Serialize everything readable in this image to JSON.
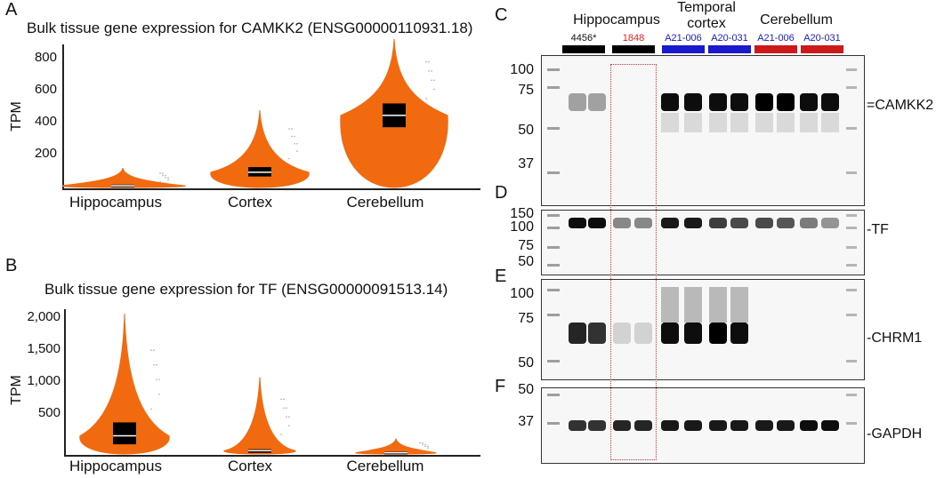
{
  "panels": {
    "A": {
      "letter": "A",
      "title": "Bulk tissue gene expression for CAMKK2 (ENSG00000110931.18)",
      "ylabel": "TPM",
      "yticks": [
        "800",
        "600",
        "400",
        "200"
      ],
      "categories": [
        "Hippocampus",
        "Cortex",
        "Cerebellum"
      ]
    },
    "B": {
      "letter": "B",
      "title": "Bulk tissue gene expression for TF (ENSG00000091513.14)",
      "ylabel": "TPM",
      "yticks": [
        "2,000",
        "1,500",
        "1,000",
        "500"
      ],
      "categories": [
        "Hippocampus",
        "Cortex",
        "Cerebellum"
      ]
    },
    "C": {
      "letter": "C",
      "markers": [
        "100",
        "75",
        "50",
        "37"
      ],
      "label": "CAMKK2"
    },
    "D": {
      "letter": "D",
      "markers": [
        "150",
        "100",
        "75",
        "50"
      ],
      "label": "TF"
    },
    "E": {
      "letter": "E",
      "markers": [
        "100",
        "75",
        "50"
      ],
      "label": "CHRM1"
    },
    "F": {
      "letter": "F",
      "markers": [
        "50",
        "37"
      ],
      "label": "GAPDH"
    }
  },
  "blot_header": {
    "groups": [
      "Hippocampus",
      "Temporal\ncortex",
      "Cerebellum"
    ],
    "samples": [
      {
        "label": "4456*",
        "label_color": "#111111",
        "bar_color": "#000000"
      },
      {
        "label": "1848",
        "label_color": "#dd2222",
        "bar_color": "#000000"
      },
      {
        "label": "A21-006",
        "label_color": "#1a1acc",
        "bar_color": "#1a1acc"
      },
      {
        "label": "A20-031",
        "label_color": "#1a1acc",
        "bar_color": "#1a1acc"
      },
      {
        "label": "A21-006",
        "label_color": "#1a1acc",
        "bar_color": "#cc1a1a"
      },
      {
        "label": "A20-031",
        "label_color": "#1a1acc",
        "bar_color": "#cc1a1a"
      }
    ]
  },
  "colors": {
    "violin": "#f26a10",
    "box": "#000000",
    "highlight": "#e63333"
  },
  "chart_data": [
    {
      "type": "violin",
      "title": "Bulk tissue gene expression for CAMKK2 (ENSG00000110931.18)",
      "ylabel": "TPM",
      "categories": [
        "Hippocampus",
        "Cortex",
        "Cerebellum"
      ],
      "ylim": [
        0,
        900
      ],
      "medians": [
        15,
        95,
        430
      ],
      "q1": [
        8,
        70,
        360
      ],
      "q3": [
        22,
        125,
        500
      ],
      "max": [
        120,
        460,
        880
      ]
    },
    {
      "type": "violin",
      "title": "Bulk tissue gene expression for TF (ENSG00000091513.14)",
      "ylabel": "TPM",
      "categories": [
        "Hippocampus",
        "Cortex",
        "Cerebellum"
      ],
      "ylim": [
        0,
        2100
      ],
      "medians": [
        270,
        60,
        30
      ],
      "q1": [
        150,
        30,
        15
      ],
      "q3": [
        460,
        80,
        45
      ],
      "max": [
        2000,
        1100,
        230
      ]
    }
  ]
}
